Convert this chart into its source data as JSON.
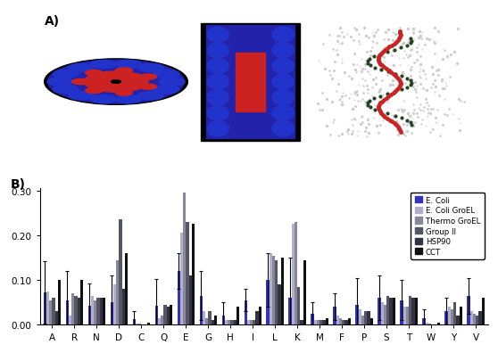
{
  "amino_acids": [
    "A",
    "R",
    "N",
    "D",
    "C",
    "Q",
    "E",
    "G",
    "H",
    "I",
    "L",
    "K",
    "M",
    "F",
    "P",
    "S",
    "T",
    "W",
    "Y",
    "V"
  ],
  "series": {
    "E. Coli": [
      0.072,
      0.055,
      0.042,
      0.05,
      0.013,
      0.042,
      0.12,
      0.065,
      0.02,
      0.055,
      0.1,
      0.06,
      0.025,
      0.04,
      0.045,
      0.06,
      0.055,
      0.015,
      0.03,
      0.065
    ],
    "E. Coli GroEL": [
      0.075,
      0.02,
      0.065,
      0.09,
      0.002,
      0.015,
      0.205,
      0.03,
      0.01,
      0.01,
      0.16,
      0.225,
      0.01,
      0.02,
      0.035,
      0.05,
      0.04,
      0.005,
      0.04,
      0.03
    ],
    "Thermo GroEL": [
      0.055,
      0.07,
      0.055,
      0.145,
      0.002,
      0.02,
      0.295,
      0.015,
      0.01,
      0.01,
      0.155,
      0.23,
      0.01,
      0.015,
      0.02,
      0.045,
      0.04,
      0.003,
      0.035,
      0.025
    ],
    "Group II": [
      0.06,
      0.065,
      0.06,
      0.235,
      0.0,
      0.045,
      0.23,
      0.03,
      0.01,
      0.01,
      0.145,
      0.085,
      0.01,
      0.01,
      0.03,
      0.065,
      0.065,
      0.0,
      0.05,
      0.02
    ],
    "HSP90": [
      0.03,
      0.06,
      0.06,
      0.08,
      0.0,
      0.04,
      0.11,
      0.01,
      0.01,
      0.03,
      0.09,
      0.01,
      0.01,
      0.01,
      0.03,
      0.06,
      0.06,
      0.0,
      0.02,
      0.03
    ],
    "CCT": [
      0.1,
      0.1,
      0.06,
      0.16,
      0.005,
      0.045,
      0.225,
      0.02,
      0.04,
      0.04,
      0.15,
      0.145,
      0.015,
      0.015,
      0.015,
      0.06,
      0.06,
      0.005,
      0.04,
      0.06
    ]
  },
  "error_bars_ecoli": [
    0.07,
    0.065,
    0.05,
    0.06,
    0.018,
    0.06,
    0.04,
    0.055,
    0.03,
    0.025,
    0.06,
    0.09,
    0.025,
    0.03,
    0.06,
    0.05,
    0.045,
    0.02,
    0.03,
    0.04
  ],
  "colors": {
    "E. Coli": "#3333bb",
    "E. Coli GroEL": "#b0b0cc",
    "Thermo GroEL": "#888899",
    "Group II": "#555566",
    "HSP90": "#333344",
    "CCT": "#111111"
  },
  "ylim": [
    0.0,
    0.305
  ],
  "yticks": [
    0.0,
    0.1,
    0.2,
    0.3
  ],
  "bar_width": 0.13,
  "panel_a_label": "A)",
  "panel_b_label": "B)"
}
